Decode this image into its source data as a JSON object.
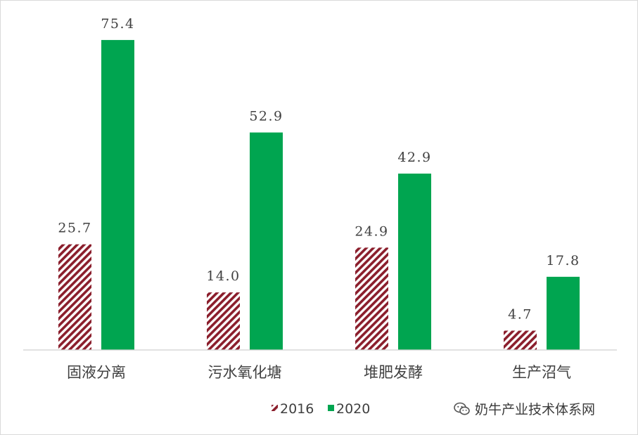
{
  "chart_data": {
    "type": "bar",
    "title": "",
    "xlabel": "",
    "ylabel": "",
    "categories": [
      "固液分离",
      "污水氧化塘",
      "堆肥发酵",
      "生产沼气"
    ],
    "series": [
      {
        "name": "2016",
        "values": [
          25.7,
          14.0,
          24.9,
          4.7
        ],
        "value_labels": [
          "25.7",
          "14.0",
          "24.9",
          "4.7"
        ],
        "color": "#8b1e2c",
        "pattern": "diagonal-hatch"
      },
      {
        "name": "2020",
        "values": [
          75.4,
          52.9,
          42.9,
          17.8
        ],
        "value_labels": [
          "75.4",
          "52.9",
          "42.9",
          "17.8"
        ],
        "color": "#00a550",
        "pattern": "solid"
      }
    ],
    "ylim": [
      0,
      80
    ],
    "grid": false,
    "legend": "bottom",
    "data_labels": true
  },
  "watermark": {
    "text": "奶牛产业技术体系网",
    "icon": "wechat-icon"
  }
}
